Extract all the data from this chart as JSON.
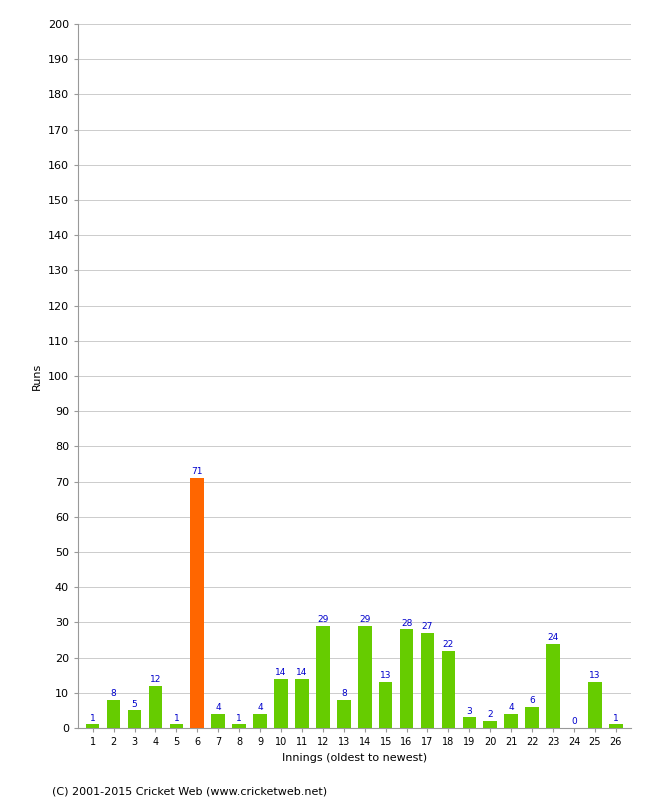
{
  "innings": [
    1,
    2,
    3,
    4,
    5,
    6,
    7,
    8,
    9,
    10,
    11,
    12,
    13,
    14,
    15,
    16,
    17,
    18,
    19,
    20,
    21,
    22,
    23,
    24,
    25,
    26
  ],
  "values": [
    1,
    8,
    5,
    12,
    1,
    71,
    4,
    1,
    4,
    14,
    14,
    29,
    8,
    29,
    13,
    28,
    27,
    22,
    3,
    2,
    4,
    6,
    24,
    0,
    13,
    1
  ],
  "bar_colors": [
    "#66cc00",
    "#66cc00",
    "#66cc00",
    "#66cc00",
    "#66cc00",
    "#ff6600",
    "#66cc00",
    "#66cc00",
    "#66cc00",
    "#66cc00",
    "#66cc00",
    "#66cc00",
    "#66cc00",
    "#66cc00",
    "#66cc00",
    "#66cc00",
    "#66cc00",
    "#66cc00",
    "#66cc00",
    "#66cc00",
    "#66cc00",
    "#66cc00",
    "#66cc00",
    "#66cc00",
    "#66cc00",
    "#66cc00"
  ],
  "xlabel": "Innings (oldest to newest)",
  "ylabel": "Runs",
  "ylim": [
    0,
    200
  ],
  "yticks": [
    0,
    10,
    20,
    30,
    40,
    50,
    60,
    70,
    80,
    90,
    100,
    110,
    120,
    130,
    140,
    150,
    160,
    170,
    180,
    190,
    200
  ],
  "label_color": "#0000cc",
  "label_fontsize": 6.5,
  "background_color": "#ffffff",
  "grid_color": "#cccccc",
  "footer": "(C) 2001-2015 Cricket Web (www.cricketweb.net)",
  "footer_fontsize": 8,
  "bar_width": 0.65
}
